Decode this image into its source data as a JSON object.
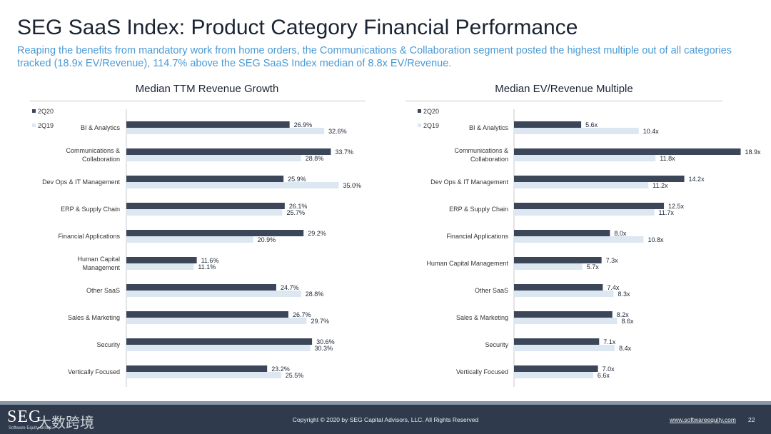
{
  "page": {
    "title": "SEG SaaS Index: Product Category Financial Performance",
    "subtitle": "Reaping the benefits from mandatory work from home orders, the Communications & Collaboration segment posted the highest multiple out of all categories tracked (18.9x EV/Revenue), 114.7% above the SEG SaaS Index median of 8.8x EV/Revenue."
  },
  "colors": {
    "series_2q20": "#3b4659",
    "series_2q19": "#dce7f2",
    "subtitle": "#4a9ad6",
    "footer": "#2f3b4c"
  },
  "chart_data": [
    {
      "type": "bar",
      "orientation": "horizontal",
      "title": "Median TTM Revenue Growth",
      "categories": [
        [
          "BI & Analytics"
        ],
        [
          "Communications &",
          "Collaboration"
        ],
        [
          "Dev Ops & IT Management"
        ],
        [
          "ERP & Supply Chain"
        ],
        [
          "Financial Applications"
        ],
        [
          "Human Capital",
          "Management"
        ],
        [
          "Other SaaS"
        ],
        [
          "Sales & Marketing"
        ],
        [
          "Security"
        ],
        [
          "Vertically Focused"
        ]
      ],
      "series": [
        {
          "name": "2Q20",
          "values": [
            26.9,
            33.7,
            25.9,
            26.1,
            29.2,
            11.6,
            24.7,
            26.7,
            30.6,
            23.2
          ],
          "labels": [
            "26.9%",
            "33.7%",
            "25.9%",
            "26.1%",
            "29.2%",
            "11.6%",
            "24.7%",
            "26.7%",
            "30.6%",
            "23.2%"
          ]
        },
        {
          "name": "2Q19",
          "values": [
            32.6,
            28.8,
            35.0,
            25.7,
            20.9,
            11.1,
            28.8,
            29.7,
            30.3,
            25.5
          ],
          "labels": [
            "32.6%",
            "28.8%",
            "35.0%",
            "25.7%",
            "20.9%",
            "11.1%",
            "28.8%",
            "29.7%",
            "30.3%",
            "25.5%"
          ]
        }
      ],
      "xlim": [
        0,
        40
      ],
      "legend": "top-left"
    },
    {
      "type": "bar",
      "orientation": "horizontal",
      "title": "Median EV/Revenue Multiple",
      "categories": [
        [
          "BI & Analytics"
        ],
        [
          "Communications &",
          "Collaboration"
        ],
        [
          "Dev Ops & IT Management"
        ],
        [
          "ERP & Supply Chain"
        ],
        [
          "Financial Applications"
        ],
        [
          "Human Capital Management"
        ],
        [
          "Other SaaS"
        ],
        [
          "Sales & Marketing"
        ],
        [
          "Security"
        ],
        [
          "Vertically Focused"
        ]
      ],
      "series": [
        {
          "name": "2Q20",
          "values": [
            5.6,
            18.9,
            14.2,
            12.5,
            8.0,
            7.3,
            7.4,
            8.2,
            7.1,
            7.0
          ],
          "labels": [
            "5.6x",
            "18.9x",
            "14.2x",
            "12.5x",
            "8.0x",
            "7.3x",
            "7.4x",
            "8.2x",
            "7.1x",
            "7.0x"
          ]
        },
        {
          "name": "2Q19",
          "values": [
            10.4,
            11.8,
            11.2,
            11.7,
            10.8,
            5.7,
            8.3,
            8.6,
            8.4,
            6.6
          ],
          "labels": [
            "10.4x",
            "11.8x",
            "11.2x",
            "11.7x",
            "10.8x",
            "5.7x",
            "8.3x",
            "8.6x",
            "8.4x",
            "6.6x"
          ]
        }
      ],
      "xlim": [
        0,
        20
      ],
      "legend": "top-left"
    }
  ],
  "footer": {
    "logo_text": "SEG",
    "logo_subtext": "Software Equity Group",
    "watermark": "大数跨境",
    "copyright": "Copyright © 2020 by SEG Capital Advisors, LLC. All Rights Reserved",
    "url": "www.softwareequity.com",
    "page_number": "22"
  }
}
